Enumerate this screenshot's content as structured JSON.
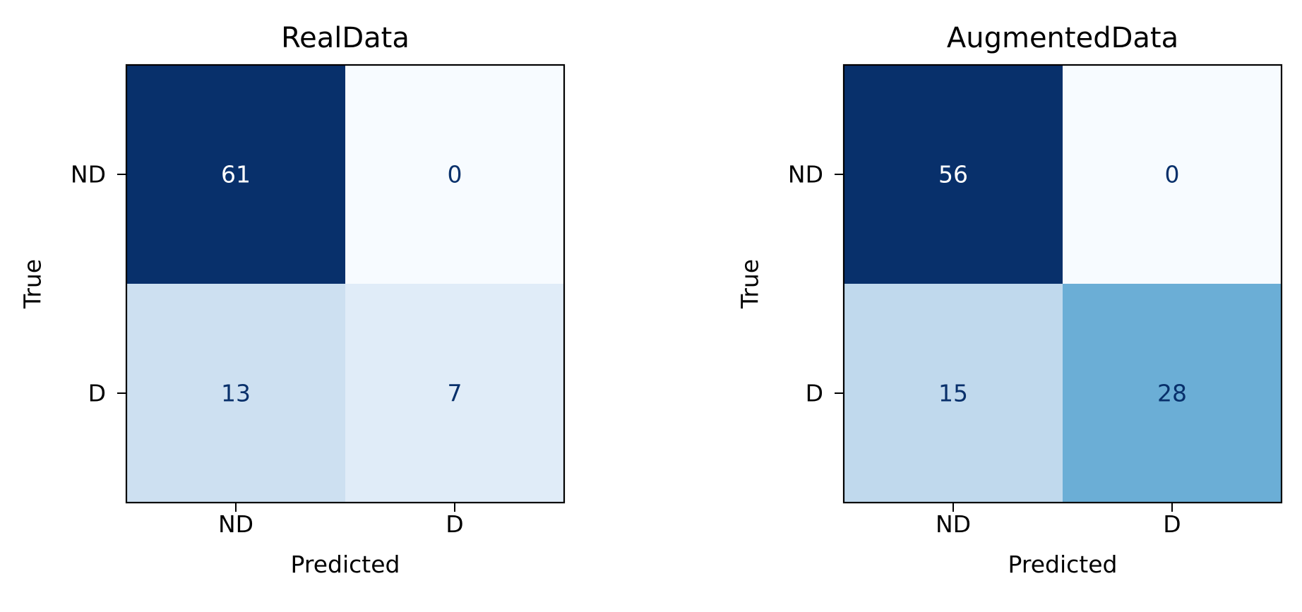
{
  "chart_data": [
    {
      "type": "heatmap",
      "title": "RealData",
      "xlabel": "Predicted",
      "ylabel": "True",
      "x_categories": [
        "ND",
        "D"
      ],
      "y_categories": [
        "ND",
        "D"
      ],
      "values": [
        [
          61,
          0
        ],
        [
          13,
          7
        ]
      ],
      "colormap": "Blues",
      "colorbar": false,
      "grid": false
    },
    {
      "type": "heatmap",
      "title": "AugmentedData",
      "xlabel": "Predicted",
      "ylabel": "True",
      "x_categories": [
        "ND",
        "D"
      ],
      "y_categories": [
        "ND",
        "D"
      ],
      "values": [
        [
          56,
          0
        ],
        [
          15,
          28
        ]
      ],
      "colormap": "Blues",
      "colorbar": false,
      "grid": false
    }
  ]
}
